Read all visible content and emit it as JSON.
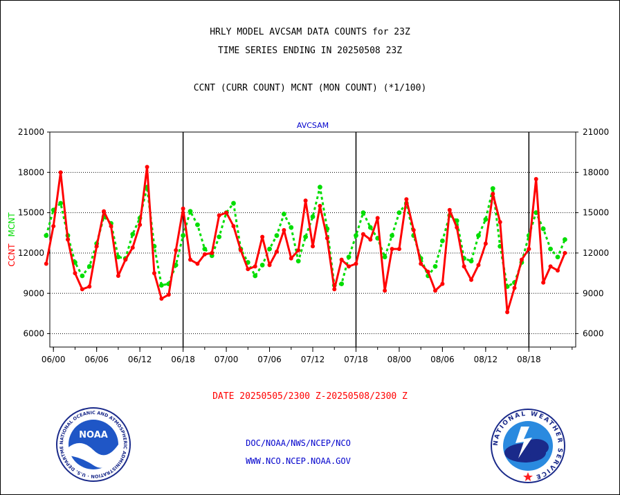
{
  "titles": {
    "line1": "HRLY MODEL AVCSAM DATA COUNTS for 23Z",
    "line2": "TIME SERIES ENDING IN 20250508 23Z",
    "line3": "CCNT (CURR COUNT) MCNT (MON COUNT) (*1/100)"
  },
  "date_range": "DATE 20250505/2300 Z-20250508/2300 Z",
  "footer": {
    "line1": "DOC/NOAA/NWS/NCEP/NCO",
    "line2": "WWW.NCO.NCEP.NOAA.GOV"
  },
  "logos": {
    "left": {
      "center_text": "NOAA",
      "ring_text": "NATIONAL OCEANIC AND ATMOSPHERIC ADMINISTRATION · U.S. DEPARTMENT OF COMMERCE"
    },
    "right": {
      "ring_text": "NATIONAL WEATHER SERVICE"
    }
  },
  "colors": {
    "ccnt": "#ff0000",
    "mcnt": "#00dd00",
    "panel_title": "#0000cc",
    "footer": "#0000cc",
    "grid": "#000000"
  },
  "chart_data": {
    "type": "line",
    "title": "AVCSAM",
    "ylabel_left": [
      "CCNT",
      "MCNT"
    ],
    "ylim": [
      5000,
      21000
    ],
    "yticks": [
      6000,
      9000,
      12000,
      15000,
      18000,
      21000
    ],
    "xlim": [
      -0.5,
      72.5
    ],
    "x_ticks": [
      {
        "x": 0,
        "label": "06/00"
      },
      {
        "x": 6,
        "label": "06/06"
      },
      {
        "x": 12,
        "label": "06/12"
      },
      {
        "x": 18,
        "label": "06/18"
      },
      {
        "x": 24,
        "label": "07/00"
      },
      {
        "x": 30,
        "label": "07/06"
      },
      {
        "x": 36,
        "label": "07/12"
      },
      {
        "x": 42,
        "label": "07/18"
      },
      {
        "x": 48,
        "label": "08/00"
      },
      {
        "x": 54,
        "label": "08/06"
      },
      {
        "x": 60,
        "label": "08/12"
      },
      {
        "x": 66,
        "label": "08/18"
      }
    ],
    "day_lines": [
      18,
      42,
      66
    ],
    "grid": "horizontal dotted",
    "x_start": -1,
    "series": [
      {
        "name": "CCNT",
        "color": "#ff0000",
        "values": [
          11200,
          14000,
          18000,
          13000,
          10500,
          9300,
          9500,
          12500,
          15100,
          14000,
          10300,
          11500,
          12400,
          14100,
          18400,
          10500,
          8600,
          8900,
          12200,
          15300,
          11500,
          11200,
          11900,
          12000,
          14800,
          15000,
          14000,
          12200,
          10800,
          11000,
          13200,
          11100,
          12100,
          13700,
          11600,
          12200,
          15900,
          12500,
          15500,
          13100,
          9300,
          11500,
          11000,
          11200,
          13400,
          13000,
          14600,
          9200,
          12300,
          12300,
          16000,
          13700,
          11200,
          10600,
          9200,
          9700,
          15200,
          13900,
          11000,
          10000,
          11100,
          12700,
          16400,
          14300,
          7600,
          9400,
          11500,
          12300,
          17500,
          9800,
          11000,
          10700,
          12000
        ]
      },
      {
        "name": "MCNT",
        "color": "#00dd00",
        "values": [
          13300,
          15200,
          15700,
          13300,
          11300,
          10300,
          11000,
          12700,
          14700,
          14200,
          11700,
          11600,
          13400,
          14600,
          16900,
          12500,
          9600,
          9700,
          11100,
          13300,
          15100,
          14100,
          12300,
          11800,
          13200,
          15000,
          15700,
          12300,
          11300,
          10300,
          11100,
          12300,
          13300,
          14900,
          13900,
          11400,
          13200,
          14700,
          16900,
          13800,
          9600,
          9700,
          11700,
          13300,
          15000,
          13900,
          13100,
          11700,
          13300,
          15000,
          15700,
          13300,
          11600,
          10300,
          11000,
          12900,
          14800,
          14400,
          11600,
          11400,
          13300,
          14500,
          16800,
          12500,
          9500,
          9800,
          11300,
          13300,
          15000,
          13800,
          12300,
          11700,
          13000
        ]
      }
    ]
  }
}
